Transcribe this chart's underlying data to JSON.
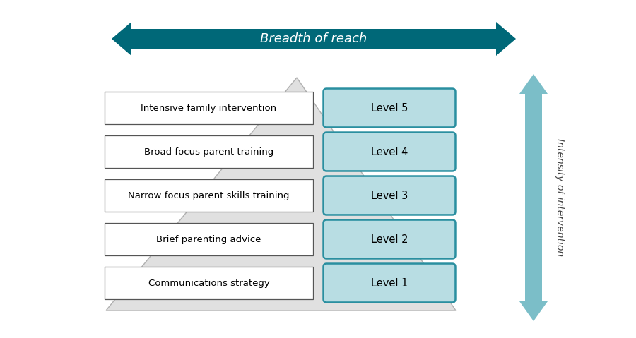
{
  "bg_color": "#ffffff",
  "teal_dark": "#006878",
  "teal_light": "#7bbec8",
  "teal_box_fill": "#b8dde3",
  "teal_box_edge": "#2a8fa0",
  "gray_triangle_fill": "#e0e0e0",
  "gray_triangle_edge": "#b0b0b0",
  "breadth_arrow_color": "#006878",
  "intensity_arrow_color": "#7bbec8",
  "left_labels": [
    "Intensive family intervention",
    "Broad focus parent training",
    "Narrow focus parent skills training",
    "Brief parenting advice",
    "Communications strategy"
  ],
  "right_labels": [
    "Level 5",
    "Level 4",
    "Level 3",
    "Level 2",
    "Level 1"
  ],
  "breadth_text": "Breadth of reach",
  "intensity_text": "Intensity of intervention",
  "fig_width": 9.0,
  "fig_height": 4.79,
  "dpi": 100
}
